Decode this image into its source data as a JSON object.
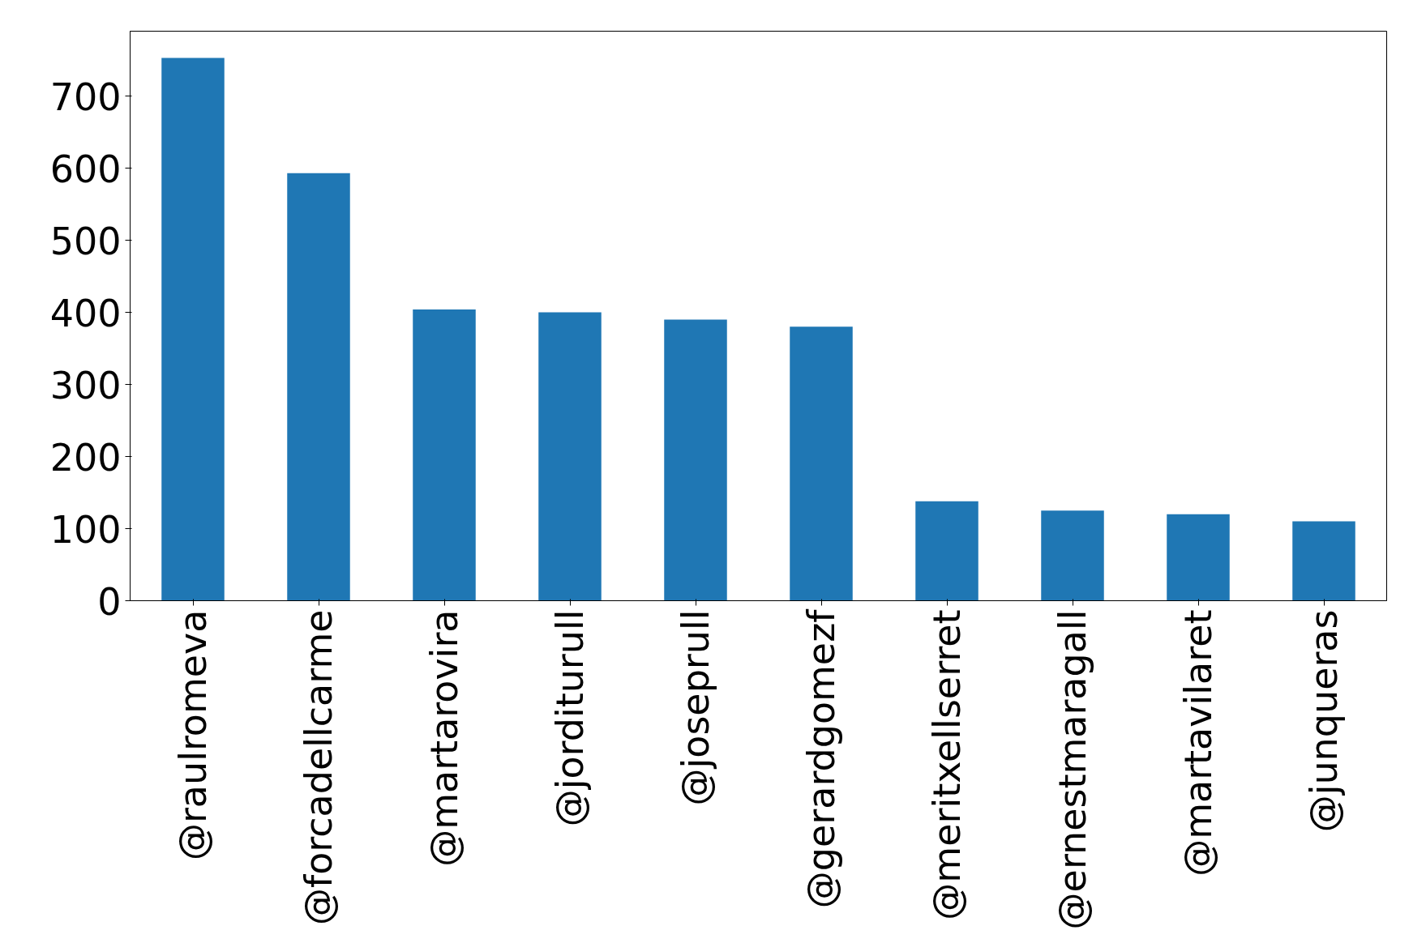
{
  "chart_data": {
    "type": "bar",
    "categories": [
      "@raulromeva",
      "@forcadellcarme",
      "@martarovira",
      "@jorditurull",
      "@joseprull",
      "@gerardgomezf",
      "@meritxellserret",
      "@ernestmaragall",
      "@martavilaret",
      "@junqueras"
    ],
    "values": [
      753,
      593,
      404,
      400,
      390,
      380,
      138,
      125,
      120,
      110
    ],
    "color": "#1f77b4",
    "ylim": [
      0,
      790
    ],
    "yticks": [
      0,
      100,
      200,
      300,
      400,
      500,
      600,
      700
    ],
    "grid": false
  }
}
